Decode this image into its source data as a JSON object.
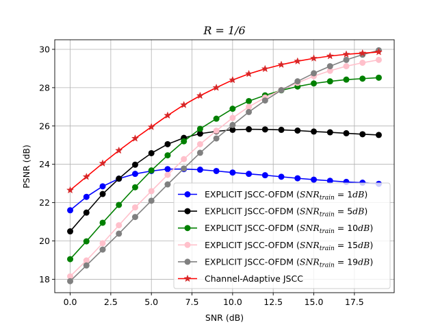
{
  "chart_data": {
    "type": "line",
    "title": "R = 1/6",
    "xlabel": "SNR (dB)",
    "ylabel": "PSNR (dB)",
    "xlim": [
      -0.95,
      19.95
    ],
    "ylim": [
      17.3,
      30.5
    ],
    "xticks": [
      0.0,
      2.5,
      5.0,
      7.5,
      10.0,
      12.5,
      15.0,
      17.5
    ],
    "xtick_labels": [
      "0.0",
      "2.5",
      "5.0",
      "7.5",
      "10.0",
      "12.5",
      "15.0",
      "17.5"
    ],
    "yticks": [
      18,
      20,
      22,
      24,
      26,
      28,
      30
    ],
    "ytick_labels": [
      "18",
      "20",
      "22",
      "24",
      "26",
      "28",
      "30"
    ],
    "grid": true,
    "legend_position": "lower-right",
    "x": [
      0,
      1,
      2,
      3,
      4,
      5,
      6,
      7,
      8,
      9,
      10,
      11,
      12,
      13,
      14,
      15,
      16,
      17,
      18,
      19
    ],
    "series": [
      {
        "name": "EXPLICIT JSCC-OFDM (SNR_train = 1dB)",
        "legend_prefix": "EXPLICIT JSCC-OFDM (",
        "legend_math": "SNR",
        "legend_sub": "train",
        "legend_eq": " = 1",
        "legend_unit": "dB",
        "legend_suffix": ")",
        "color": "#0000ff",
        "marker": "circle",
        "values": [
          21.6,
          22.3,
          22.85,
          23.25,
          23.5,
          23.65,
          23.75,
          23.75,
          23.72,
          23.65,
          23.57,
          23.5,
          23.43,
          23.35,
          23.27,
          23.2,
          23.14,
          23.08,
          23.04,
          22.98
        ]
      },
      {
        "name": "EXPLICIT JSCC-OFDM (SNR_train = 5dB)",
        "legend_prefix": "EXPLICIT JSCC-OFDM (",
        "legend_math": "SNR",
        "legend_sub": "train",
        "legend_eq": " = 5",
        "legend_unit": "dB",
        "legend_suffix": ")",
        "color": "#000000",
        "marker": "circle",
        "values": [
          20.5,
          21.48,
          22.45,
          23.25,
          23.98,
          24.58,
          25.05,
          25.38,
          25.6,
          25.72,
          25.8,
          25.83,
          25.82,
          25.8,
          25.76,
          25.71,
          25.67,
          25.62,
          25.57,
          25.53
        ]
      },
      {
        "name": "EXPLICIT JSCC-OFDM (SNR_train = 10dB)",
        "legend_prefix": "EXPLICIT JSCC-OFDM (",
        "legend_math": "SNR",
        "legend_sub": "train",
        "legend_eq": " = 10",
        "legend_unit": "dB",
        "legend_suffix": ")",
        "color": "#008000",
        "marker": "circle",
        "values": [
          19.05,
          19.98,
          20.95,
          21.88,
          22.8,
          23.68,
          24.47,
          25.2,
          25.85,
          26.38,
          26.9,
          27.3,
          27.6,
          27.86,
          28.06,
          28.22,
          28.33,
          28.42,
          28.47,
          28.52
        ]
      },
      {
        "name": "EXPLICIT JSCC-OFDM (SNR_train = 15dB)",
        "legend_prefix": "EXPLICIT JSCC-OFDM (",
        "legend_math": "SNR",
        "legend_sub": "train",
        "legend_eq": " = 15",
        "legend_unit": "dB",
        "legend_suffix": ")",
        "color": "#ffc0cb",
        "marker": "circle",
        "values": [
          18.15,
          18.98,
          19.88,
          20.82,
          21.75,
          22.6,
          23.45,
          24.27,
          25.05,
          25.75,
          26.42,
          27.0,
          27.48,
          27.88,
          28.25,
          28.6,
          28.88,
          29.12,
          29.3,
          29.45
        ]
      },
      {
        "name": "EXPLICIT JSCC-OFDM (SNR_train = 19dB)",
        "legend_prefix": "EXPLICIT JSCC-OFDM (",
        "legend_math": "SNR",
        "legend_sub": "train",
        "legend_eq": " = 19",
        "legend_unit": "dB",
        "legend_suffix": ")",
        "color": "#808080",
        "marker": "circle",
        "values": [
          17.9,
          18.72,
          19.55,
          20.38,
          21.25,
          22.1,
          22.95,
          23.78,
          24.6,
          25.35,
          26.05,
          26.73,
          27.33,
          27.87,
          28.33,
          28.75,
          29.12,
          29.45,
          29.72,
          29.95
        ]
      },
      {
        "name": "Channel-Adaptive JSCC",
        "legend_prefix": "Channel-Adaptive JSCC",
        "color": "#ff0000",
        "color_marker": "#d62728",
        "marker": "star",
        "values": [
          22.65,
          23.35,
          24.05,
          24.72,
          25.35,
          25.95,
          26.55,
          27.1,
          27.58,
          28.0,
          28.4,
          28.72,
          28.98,
          29.2,
          29.38,
          29.53,
          29.65,
          29.74,
          29.8,
          29.86
        ]
      }
    ]
  }
}
